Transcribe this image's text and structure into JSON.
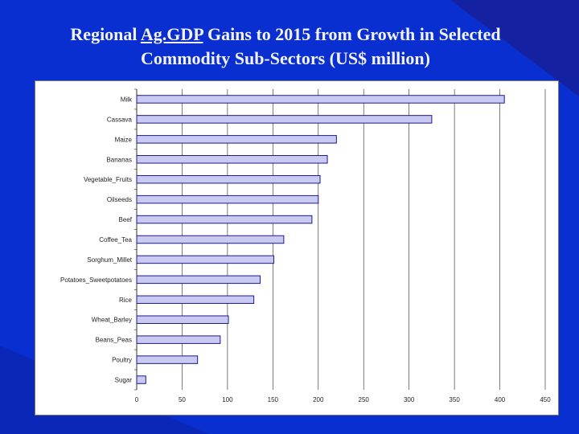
{
  "title": {
    "prefix": "Regional ",
    "underlined": "Ag.GDP",
    "rest_line1": " Gains to 2015 from Growth in Selected",
    "line2": "Commodity Sub-Sectors (US$ million)"
  },
  "colors": {
    "background": "#0a2fd0",
    "bar_fill": "#c9c9f2",
    "bar_stroke": "#1a1a8a",
    "grid": "#222222"
  },
  "chart_data": {
    "type": "bar",
    "orientation": "horizontal",
    "categories": [
      "Milk",
      "Cassava",
      "Maize",
      "Bananas",
      "Vegetable_Fruits",
      "Oilseeds",
      "Beef",
      "Coffee_Tea",
      "Sorghum_Millet",
      "Potatoes_Sweetpotatoes",
      "Rice",
      "Wheat_Barley",
      "Beans_Peas",
      "Poultry",
      "Sugar"
    ],
    "values": [
      405,
      325,
      220,
      210,
      202,
      200,
      193,
      162,
      151,
      136,
      129,
      101,
      92,
      67,
      10
    ],
    "xlim": [
      0,
      450
    ],
    "xticks": [
      "0",
      "50",
      "100",
      "150",
      "200",
      "250",
      "300",
      "350",
      "400",
      "450"
    ],
    "grid": "vertical",
    "legend": "none"
  }
}
